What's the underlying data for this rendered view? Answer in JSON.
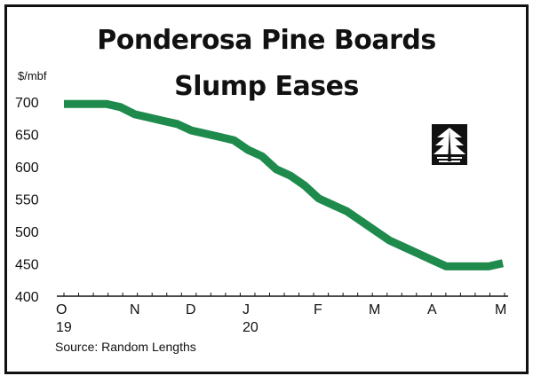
{
  "chart_data": {
    "type": "line",
    "title_lines": [
      "Ponderosa Pine Boards",
      "Slump Eases"
    ],
    "ylabel": "$/mbf",
    "source": "Source: Random Lengths",
    "ylim": [
      400,
      700
    ],
    "yticks": [
      400,
      450,
      500,
      550,
      600,
      650,
      700
    ],
    "xlabels": [
      "O",
      "N",
      "D",
      "J",
      "F",
      "M",
      "A",
      "M"
    ],
    "xyears": [
      {
        "label": "19",
        "at": "O"
      },
      {
        "label": "20",
        "at": "J"
      }
    ],
    "series": [
      {
        "values": [
          697,
          697,
          697,
          697,
          692,
          681,
          676,
          671,
          666,
          656,
          651,
          646,
          641,
          626,
          616,
          596,
          586,
          571,
          551,
          541,
          531,
          516,
          501,
          486,
          476,
          466,
          456,
          446,
          446,
          446,
          446,
          451
        ]
      }
    ],
    "line_color": "#1e8a4c",
    "grid": false
  },
  "logo": {
    "name": "pine-tree-logo"
  }
}
